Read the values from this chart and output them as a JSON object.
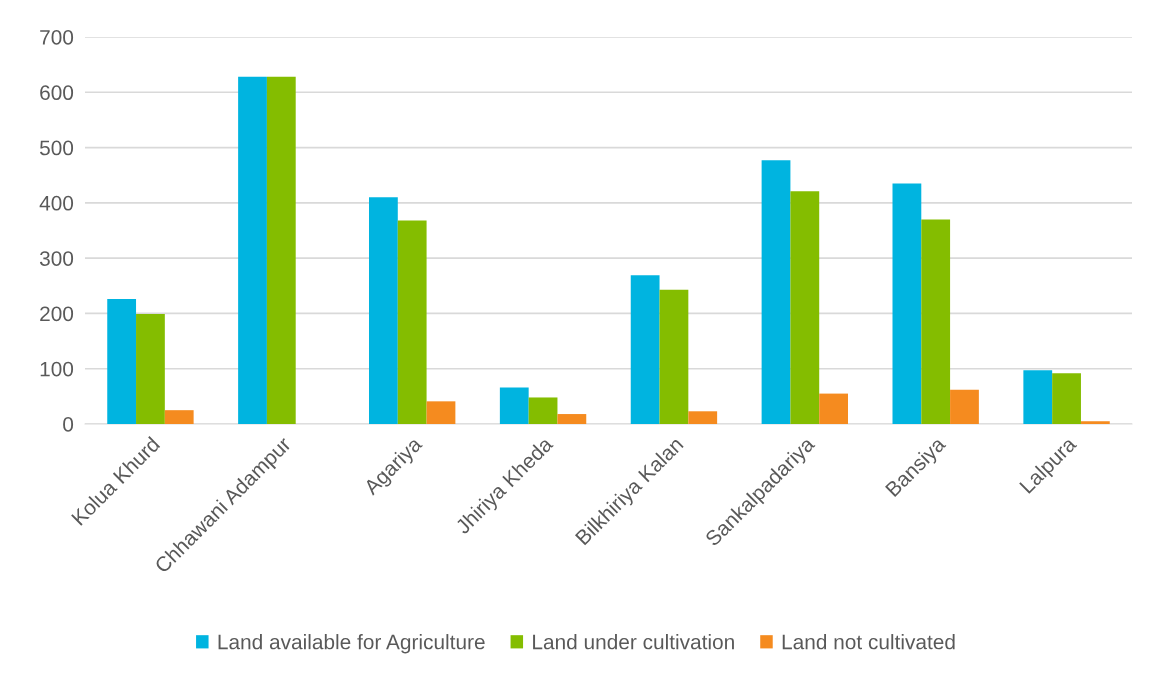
{
  "chart_data": {
    "type": "bar",
    "categories": [
      "Kolua Khurd",
      "Chhawani Adampur",
      "Agariya",
      "Jhiriya Kheda",
      "Bilkhiriya Kalan",
      "Sankalpadariya",
      "Bansiya",
      "Lalpura"
    ],
    "series": [
      {
        "name": "Land available for Agriculture",
        "color": "#00b4e0",
        "values": [
          226,
          628,
          410,
          66,
          269,
          477,
          435,
          97
        ]
      },
      {
        "name": "Land under cultivation",
        "color": "#84bd00",
        "values": [
          199,
          628,
          368,
          48,
          243,
          421,
          370,
          92
        ]
      },
      {
        "name": "Land not cultivated",
        "color": "#f58b1f",
        "values": [
          25,
          0,
          41,
          18,
          23,
          55,
          62,
          5
        ]
      }
    ],
    "ylim": [
      0,
      700
    ],
    "yticks": [
      0,
      100,
      200,
      300,
      400,
      500,
      600,
      700
    ],
    "grid": "y",
    "legend": "bottom"
  }
}
